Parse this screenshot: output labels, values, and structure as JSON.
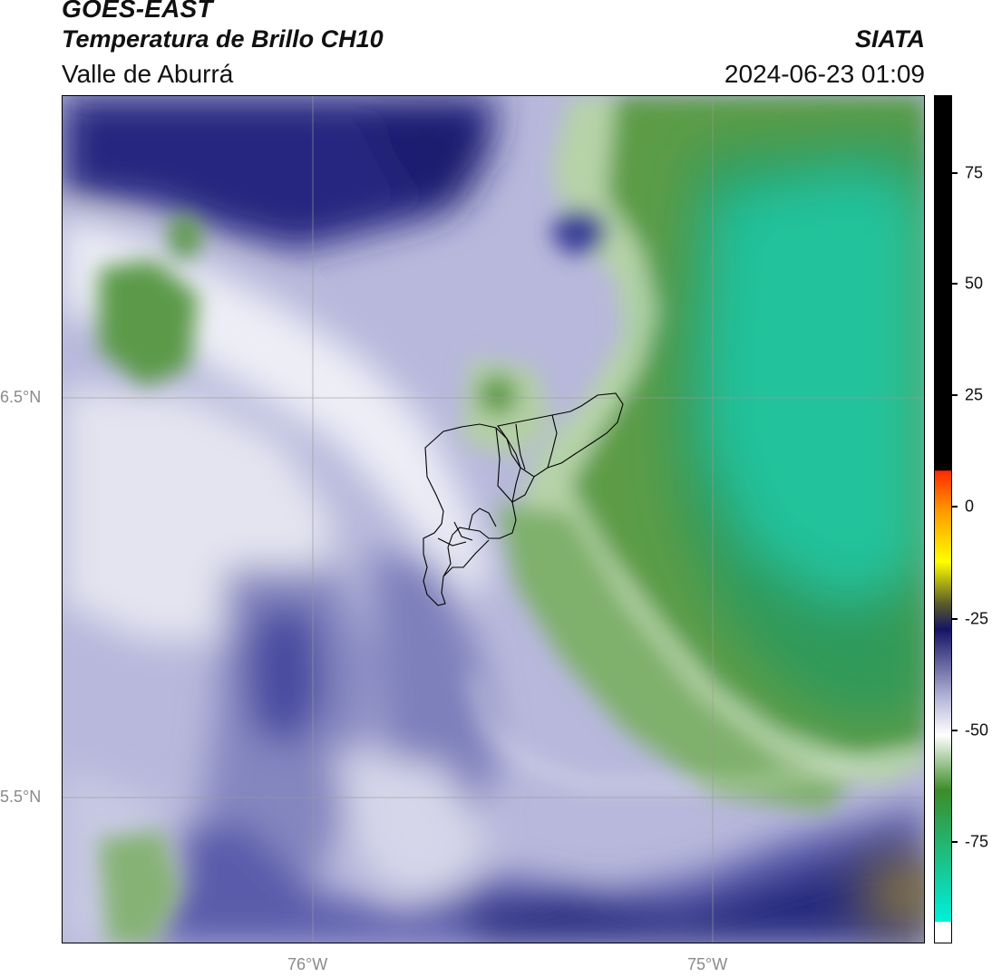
{
  "header": {
    "satellite": "GOES-EAST",
    "product": "Temperatura de Brillo CH10",
    "region": "Valle de Aburrá",
    "agency": "SIATA",
    "datetime": "2024-06-23 01:09"
  },
  "axes": {
    "lat_labels": [
      "6.5°N",
      "5.5°N"
    ],
    "lon_labels": [
      "76°W",
      "75°W"
    ]
  },
  "colorbar": {
    "ticks": [
      "75",
      "50",
      "25",
      "0",
      "-25",
      "-50",
      "-75"
    ],
    "colors": {
      "warm_black": "#000000",
      "red": "#ff2a00",
      "orange": "#ff9900",
      "yellow": "#ffff00",
      "dark_olive": "#5a5a2a",
      "navy": "#141464",
      "lavender": "#b4b4d8",
      "white": "#ffffff",
      "green": "#3c8c28",
      "cyan": "#00f0dc"
    }
  },
  "map": {
    "colors": {
      "navy": "#1c1e78",
      "blue": "#5254a8",
      "lavender": "#a9aad2",
      "pale": "#e6e6f2",
      "light_green": "#a8c89a",
      "green": "#4c8c38",
      "dark_green": "#3a8a2c",
      "teal": "#23c49c",
      "olive": "#8a7a3a",
      "grid": "#9a9a9a",
      "outline": "#000000"
    }
  }
}
